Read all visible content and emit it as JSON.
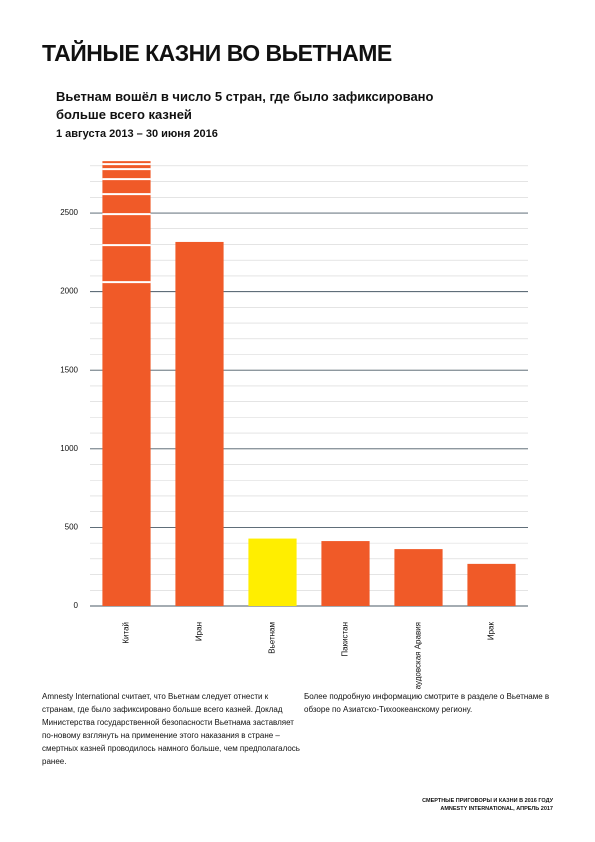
{
  "header": {
    "title": "ТАЙНЫЕ КАЗНИ ВО ВЬЕТНАМЕ"
  },
  "chart_data": {
    "type": "bar",
    "title": "Вьетнам вошёл в число 5 стран, где было зафиксировано больше всего казней",
    "subtitle": "1 августа 2013 – 30 июня 2016",
    "categories": [
      "Китай",
      "Иран",
      "Вьетнам",
      "Пакистан",
      "Саудовская Аравия",
      "Ирак"
    ],
    "values": [
      2830,
      2316,
      429,
      413,
      362,
      268
    ],
    "colors": [
      "#f05a28",
      "#f05a28",
      "#ffee00",
      "#f05a28",
      "#f05a28",
      "#f05a28"
    ],
    "ylim": [
      0,
      2850
    ],
    "yticks": [
      0,
      500,
      1000,
      1500,
      2000,
      2500
    ],
    "minor_yticks": [
      100,
      200,
      300,
      400,
      600,
      700,
      800,
      900,
      1100,
      1200,
      1300,
      1400,
      1600,
      1700,
      1800,
      1900,
      2100,
      2200,
      2300,
      2400,
      2600,
      2700,
      2800
    ],
    "grid": true
  },
  "notes": {
    "left": "Amnesty International считает, что Вьетнам следует отнести к странам, где было зафиксировано больше всего казней. Доклад Министерства государственной безопасности Вьетнама заставляет по-новому взглянуть на применение этого наказания в стране – смертных казней проводилось намного больше, чем предполагалось ранее.",
    "right": "Более подробную информацию смотрите в разделе о Вьетнаме в обзоре по Азиатско-Тихоокеанскому региону."
  },
  "footer": [
    "СМЕРТНЫЕ ПРИГОВОРЫ И КАЗНИ В 2016 ГОДУ",
    "AMNESTY INTERNATIONAL, АПРЕЛЬ 2017"
  ]
}
